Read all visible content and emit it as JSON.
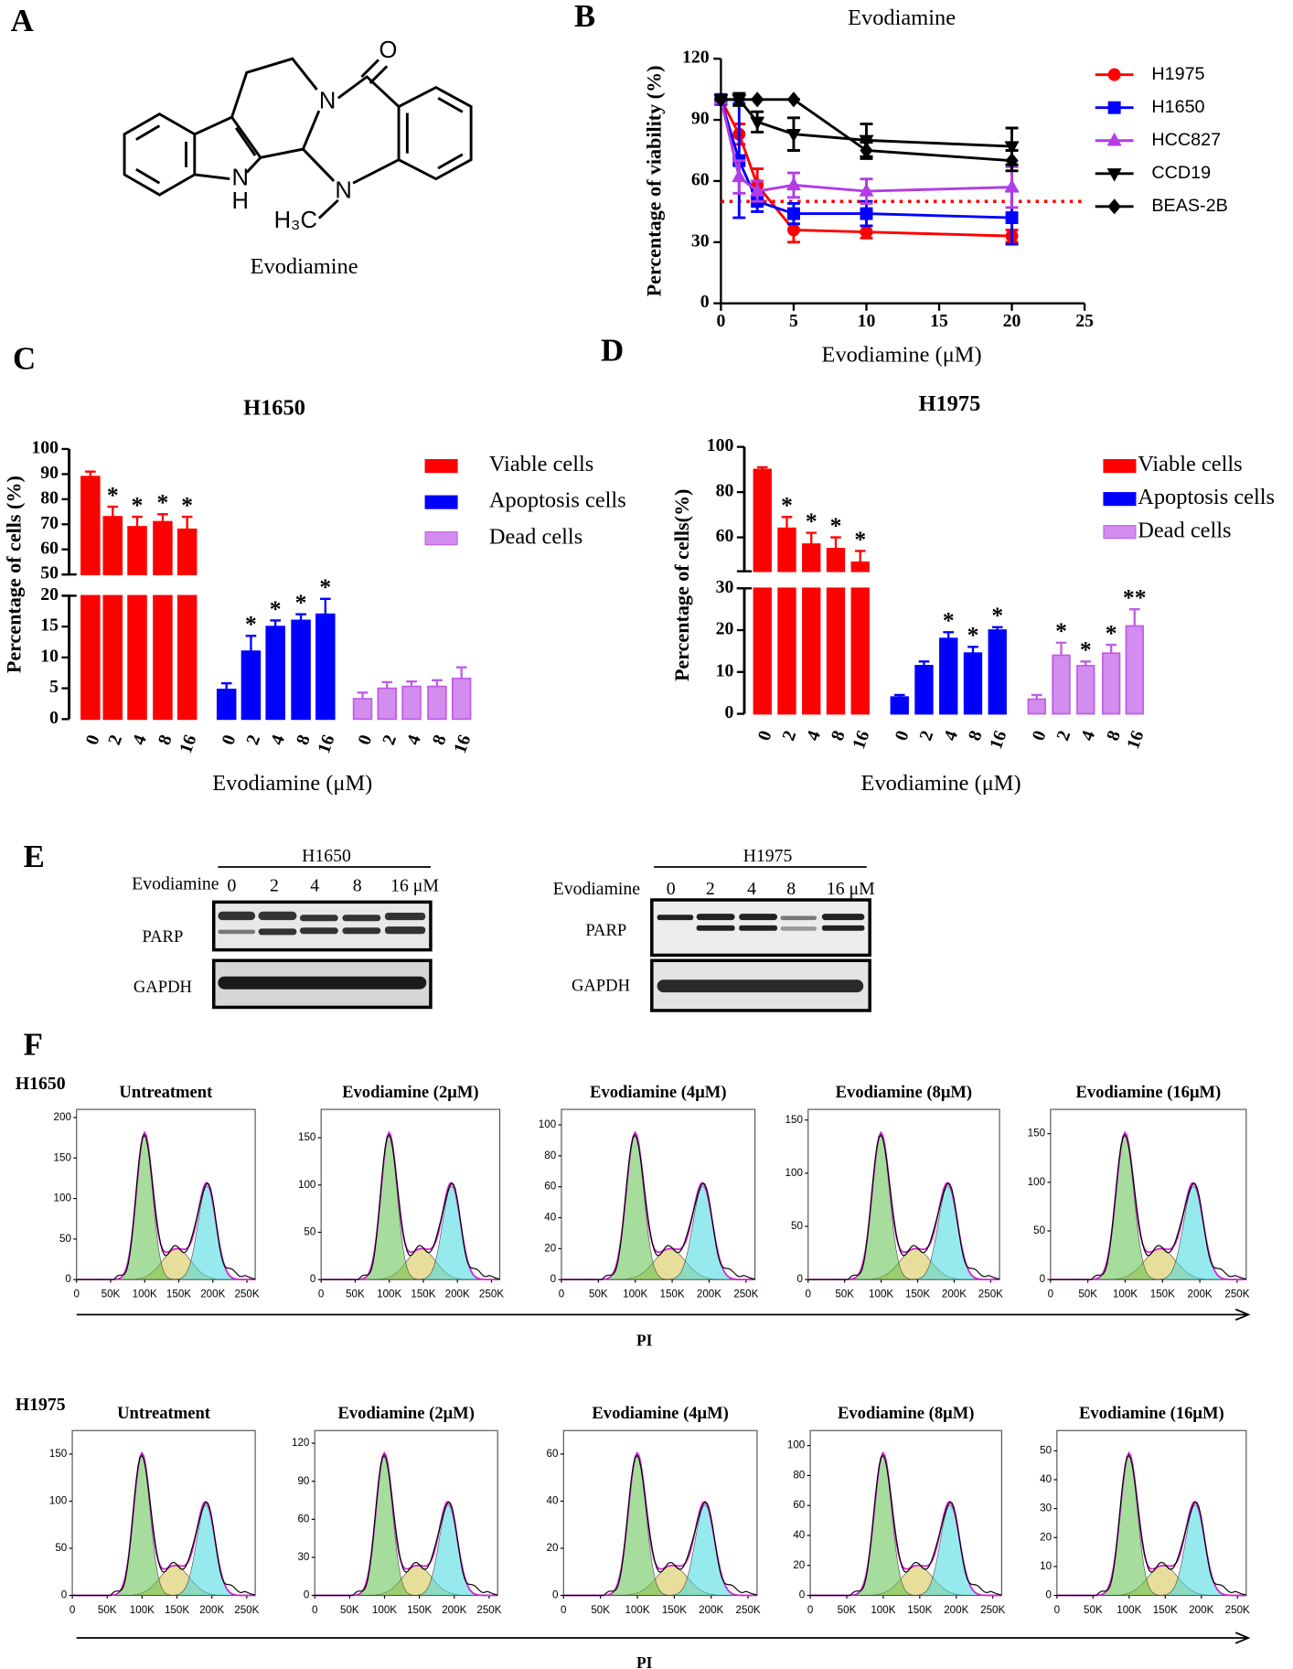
{
  "panel_labels": [
    "A",
    "B",
    "C",
    "D",
    "E",
    "F"
  ],
  "panel_a": {
    "atoms": [
      "O",
      "N",
      "N",
      "H",
      "H₃C"
    ],
    "name": "Evodiamine"
  },
  "chart_data": [
    {
      "type": "line",
      "title": "Evodiamine",
      "x_label": "Evodiamine (μM)",
      "y_label": "Percentage of viability (%)",
      "x": [
        0,
        1.25,
        2.5,
        5,
        10,
        20
      ],
      "xlim": [
        0,
        25
      ],
      "xticks": [
        0,
        5,
        10,
        15,
        20,
        25
      ],
      "ylim": [
        0,
        120
      ],
      "yticks": [
        0,
        30,
        60,
        90,
        120
      ],
      "reference_line": 50,
      "reference_color": "#ff0000",
      "series": [
        {
          "name": "H1975",
          "color": "#ff0000",
          "marker": "circle",
          "values": [
            100,
            83,
            58,
            36,
            35,
            33
          ],
          "errors": [
            0,
            5,
            8,
            6,
            3,
            3
          ]
        },
        {
          "name": "H1650",
          "color": "#0000ff",
          "marker": "square",
          "values": [
            100,
            70,
            50,
            44,
            44,
            42
          ],
          "errors": [
            0,
            28,
            5,
            5,
            6,
            13
          ]
        },
        {
          "name": "HCC827",
          "color": "#b23ce6",
          "marker": "triangle-up",
          "values": [
            100,
            62,
            55,
            58,
            55,
            57
          ],
          "errors": [
            0,
            8,
            5,
            6,
            6,
            10
          ]
        },
        {
          "name": "CCD19",
          "color": "#000000",
          "marker": "triangle-down",
          "values": [
            100,
            100,
            89,
            83,
            80,
            77
          ],
          "errors": [
            0,
            3,
            5,
            8,
            8,
            9
          ]
        },
        {
          "name": "BEAS-2B",
          "color": "#000000",
          "marker": "diamond",
          "values": [
            100,
            100,
            100,
            100,
            75,
            70
          ],
          "errors": [
            0,
            0,
            0,
            0,
            4,
            5
          ]
        }
      ]
    },
    {
      "type": "bar",
      "title": "H1650",
      "x_label": "Evodiamine (μM)",
      "y_label": "Percentage of cells (%)",
      "categories": [
        "0",
        "2",
        "4",
        "8",
        "16"
      ],
      "ylim_lower": [
        0,
        20
      ],
      "yticks_lower": [
        0,
        5,
        10,
        15,
        20
      ],
      "ylim_upper": [
        50,
        100
      ],
      "yticks_upper": [
        50,
        60,
        70,
        80,
        90,
        100
      ],
      "series": [
        {
          "name": "Viable cells",
          "color": "#ff0000",
          "values": [
            89,
            73,
            69,
            71,
            68
          ],
          "errors": [
            2,
            4,
            4,
            3,
            5
          ],
          "significance": [
            null,
            "*",
            "*",
            "*",
            "*"
          ]
        },
        {
          "name": "Apoptosis cells",
          "color": "#0000ff",
          "values": [
            4.8,
            11,
            15,
            16,
            17
          ],
          "errors": [
            1,
            2.5,
            1,
            1,
            2.5
          ],
          "significance": [
            null,
            "*",
            "*",
            "*",
            "*"
          ]
        },
        {
          "name": "Dead cells",
          "color": "#c05ce8",
          "values": [
            3.3,
            5,
            5.3,
            5.3,
            6.6
          ],
          "errors": [
            1,
            1,
            0.8,
            1,
            1.8
          ],
          "significance": [
            null,
            null,
            null,
            null,
            null
          ]
        }
      ]
    },
    {
      "type": "bar",
      "title": "H1975",
      "x_label": "Evodiamine (μM)",
      "y_label": "Percentage of cells(%)",
      "categories": [
        "0",
        "2",
        "4",
        "8",
        "16"
      ],
      "ylim_lower": [
        0,
        30
      ],
      "yticks_lower": [
        0,
        10,
        20,
        30
      ],
      "ylim_upper": [
        45,
        100
      ],
      "yticks_upper": [
        60,
        80,
        100
      ],
      "series": [
        {
          "name": "Viable cells",
          "color": "#ff0000",
          "values": [
            90,
            64,
            57,
            55,
            49
          ],
          "errors": [
            1,
            5,
            5,
            5,
            5
          ],
          "significance": [
            null,
            "*",
            "*",
            "*",
            "*"
          ]
        },
        {
          "name": "Apoptosis cells",
          "color": "#0000ff",
          "values": [
            4,
            11.5,
            18,
            14.5,
            20
          ],
          "errors": [
            0.5,
            1,
            1.5,
            1.5,
            0.7
          ],
          "significance": [
            null,
            null,
            "*",
            "*",
            "*"
          ]
        },
        {
          "name": "Dead cells",
          "color": "#c05ce8",
          "values": [
            3.5,
            14,
            11.5,
            14.5,
            21
          ],
          "errors": [
            1,
            3,
            1,
            2,
            4
          ],
          "significance": [
            null,
            "*",
            "*",
            "*",
            "**"
          ]
        }
      ]
    }
  ],
  "panel_e": {
    "blots": [
      {
        "cell_line": "H1650",
        "treatment_label": "Evodiamine",
        "doses": [
          "0",
          "2",
          "4",
          "8",
          "16 μM"
        ],
        "proteins": [
          "PARP",
          "GAPDH"
        ]
      },
      {
        "cell_line": "H1975",
        "treatment_label": "Evodiamine",
        "doses": [
          "0",
          "2",
          "4",
          "8",
          "16 μM"
        ],
        "proteins": [
          "PARP",
          "GAPDH"
        ]
      }
    ]
  },
  "panel_f": {
    "rows": [
      {
        "label": "H1650",
        "x_label": "PI",
        "plots": [
          {
            "title": "Untreatment",
            "xlim": [
              0,
              262144
            ],
            "xticks": [
              0,
              {
                "value": 50000,
                "label": "50K"
              },
              {
                "value": 100000,
                "label": "100K"
              },
              {
                "value": 150000,
                "label": "150K"
              },
              {
                "value": 200000,
                "label": "200K"
              },
              {
                "value": 250000,
                "label": "250K"
              }
            ],
            "ylim": [
              0,
              210
            ],
            "yticks": [
              0,
              50,
              100,
              150,
              200
            ]
          },
          {
            "title": "Evodiamine (2μM)",
            "xlim": [
              0,
              262144
            ],
            "xticks": [
              0,
              {
                "value": 50000,
                "label": "50K"
              },
              {
                "value": 100000,
                "label": "100K"
              },
              {
                "value": 150000,
                "label": "150K"
              },
              {
                "value": 200000,
                "label": "200K"
              },
              {
                "value": 250000,
                "label": "250K"
              }
            ],
            "ylim": [
              0,
              180
            ],
            "yticks": [
              0,
              50,
              100,
              150
            ]
          },
          {
            "title": "Evodiamine (4μM)",
            "xlim": [
              0,
              262144
            ],
            "xticks": [
              0,
              {
                "value": 50000,
                "label": "50K"
              },
              {
                "value": 100000,
                "label": "100K"
              },
              {
                "value": 150000,
                "label": "150K"
              },
              {
                "value": 200000,
                "label": "200K"
              },
              {
                "value": 250000,
                "label": "250K"
              }
            ],
            "ylim": [
              0,
              110
            ],
            "yticks": [
              0,
              20,
              40,
              60,
              80,
              100
            ]
          },
          {
            "title": "Evodiamine (8μM)",
            "xlim": [
              0,
              262144
            ],
            "xticks": [
              0,
              {
                "value": 50000,
                "label": "50K"
              },
              {
                "value": 100000,
                "label": "100K"
              },
              {
                "value": 150000,
                "label": "150K"
              },
              {
                "value": 200000,
                "label": "200K"
              },
              {
                "value": 250000,
                "label": "250K"
              }
            ],
            "ylim": [
              0,
              160
            ],
            "yticks": [
              0,
              50,
              100,
              150
            ]
          },
          {
            "title": "Evodiamine (16μM)",
            "xlim": [
              0,
              262144
            ],
            "xticks": [
              0,
              {
                "value": 50000,
                "label": "50K"
              },
              {
                "value": 100000,
                "label": "100K"
              },
              {
                "value": 150000,
                "label": "150K"
              },
              {
                "value": 200000,
                "label": "200K"
              },
              {
                "value": 250000,
                "label": "250K"
              }
            ],
            "ylim": [
              0,
              175
            ],
            "yticks": [
              0,
              50,
              100,
              150
            ]
          }
        ]
      },
      {
        "label": "H1975",
        "x_label": "PI",
        "plots": [
          {
            "title": "Untreatment",
            "xlim": [
              0,
              262144
            ],
            "xticks": [
              0,
              {
                "value": 50000,
                "label": "50K"
              },
              {
                "value": 100000,
                "label": "100K"
              },
              {
                "value": 150000,
                "label": "150K"
              },
              {
                "value": 200000,
                "label": "200K"
              },
              {
                "value": 250000,
                "label": "250K"
              }
            ],
            "ylim": [
              0,
              175
            ],
            "yticks": [
              0,
              50,
              100,
              150
            ]
          },
          {
            "title": "Evodiamine (2μM)",
            "xlim": [
              0,
              262144
            ],
            "xticks": [
              0,
              {
                "value": 50000,
                "label": "50K"
              },
              {
                "value": 100000,
                "label": "100K"
              },
              {
                "value": 150000,
                "label": "150K"
              },
              {
                "value": 200000,
                "label": "200K"
              },
              {
                "value": 250000,
                "label": "250K"
              }
            ],
            "ylim": [
              0,
              130
            ],
            "yticks": [
              0,
              30,
              60,
              90,
              120
            ]
          },
          {
            "title": "Evodiamine (4μM)",
            "xlim": [
              0,
              262144
            ],
            "xticks": [
              0,
              {
                "value": 50000,
                "label": "50K"
              },
              {
                "value": 100000,
                "label": "100K"
              },
              {
                "value": 150000,
                "label": "150K"
              },
              {
                "value": 200000,
                "label": "200K"
              },
              {
                "value": 250000,
                "label": "250K"
              }
            ],
            "ylim": [
              0,
              70
            ],
            "yticks": [
              0,
              20,
              40,
              60
            ]
          },
          {
            "title": "Evodiamine (8μM)",
            "xlim": [
              0,
              262144
            ],
            "xticks": [
              0,
              {
                "value": 50000,
                "label": "50K"
              },
              {
                "value": 100000,
                "label": "100K"
              },
              {
                "value": 150000,
                "label": "150K"
              },
              {
                "value": 200000,
                "label": "200K"
              },
              {
                "value": 250000,
                "label": "250K"
              }
            ],
            "ylim": [
              0,
              110
            ],
            "yticks": [
              0,
              20,
              40,
              60,
              80,
              100
            ]
          },
          {
            "title": "Evodiamine (16μM)",
            "xlim": [
              0,
              262144
            ],
            "xticks": [
              0,
              {
                "value": 50000,
                "label": "50K"
              },
              {
                "value": 100000,
                "label": "100K"
              },
              {
                "value": 150000,
                "label": "150K"
              },
              {
                "value": 200000,
                "label": "200K"
              },
              {
                "value": 250000,
                "label": "250K"
              }
            ],
            "ylim": [
              0,
              57
            ],
            "yticks": [
              0,
              10,
              20,
              30,
              40,
              50
            ]
          }
        ]
      }
    ]
  }
}
